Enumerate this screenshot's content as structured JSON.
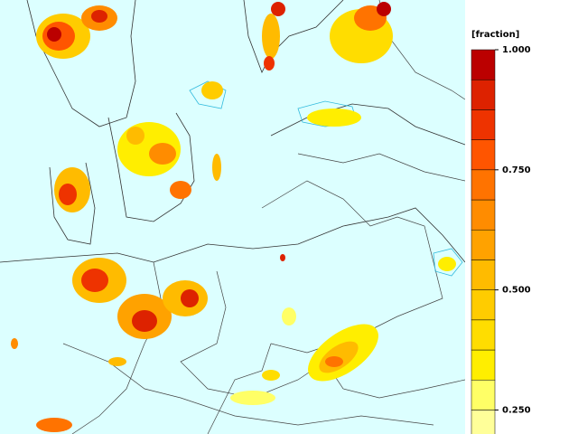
{
  "colorbar": {
    "label": "[fraction]",
    "clim": [
      0.2,
      1
    ],
    "ticks": [
      {
        "value": 1,
        "label": "1.000"
      },
      {
        "value": 0.75,
        "label": "0.750"
      },
      {
        "value": 0.5,
        "label": "0.500"
      },
      {
        "value": 0.25,
        "label": "0.250"
      }
    ],
    "levels": [
      0.1875,
      0.25,
      0.3125,
      0.375,
      0.4375,
      0.5,
      0.5625,
      0.625,
      0.6875,
      0.75,
      0.8125,
      0.875,
      0.9375,
      1
    ],
    "colors": [
      "#ffff99",
      "#ffff66",
      "#ffee00",
      "#ffdd00",
      "#ffcc00",
      "#ffbb00",
      "#ffa200",
      "#ff8c00",
      "#ff7300",
      "#ff5500",
      "#ee3300",
      "#dd2200",
      "#bb0000"
    ]
  }
}
